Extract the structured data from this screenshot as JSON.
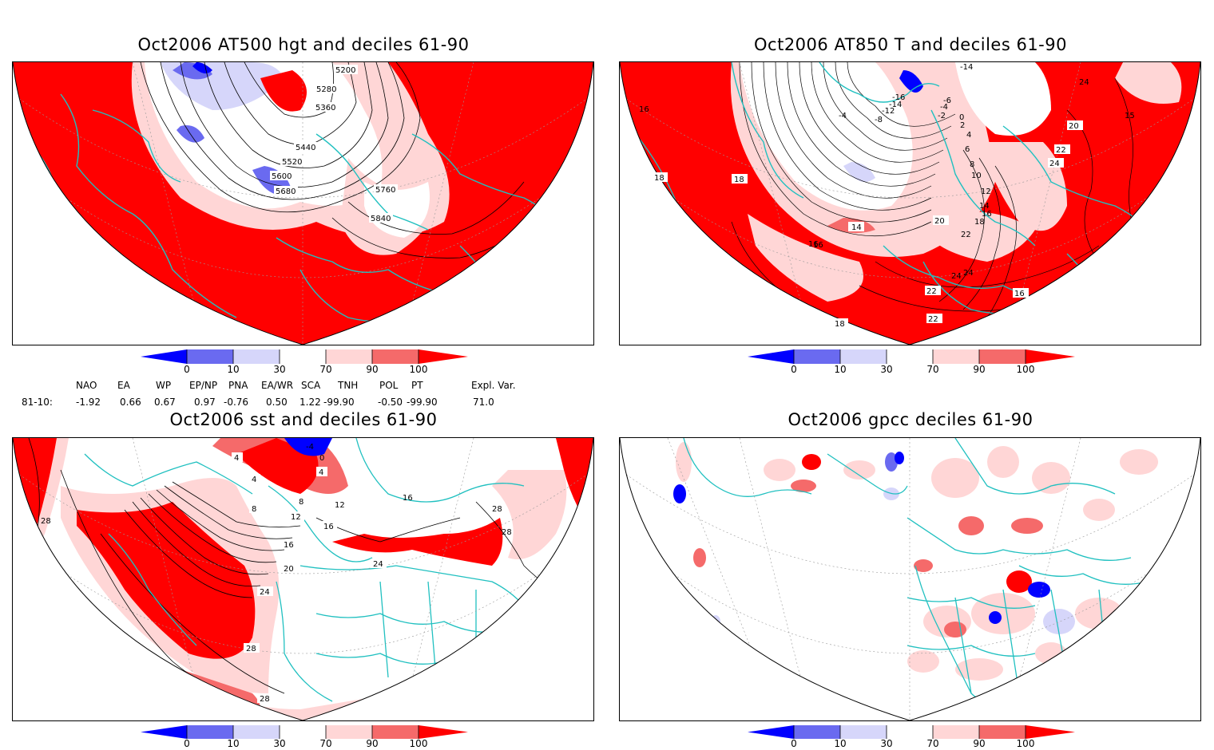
{
  "panels": [
    {
      "id": "p1",
      "title": "Oct2006 AT500 hgt and deciles 61-90",
      "contour_labels": [
        "5200",
        "5280",
        "5360",
        "5440",
        "5520",
        "5600",
        "5680",
        "5760",
        "5840"
      ]
    },
    {
      "id": "p2",
      "title": "Oct2006 AT850 T and deciles 61-90",
      "contour_labels": [
        "-14",
        "-16",
        "-14",
        "-12",
        "-8",
        "-6",
        "-4",
        "-2",
        "0",
        "2",
        "4",
        "6",
        "8",
        "10",
        "12",
        "14",
        "16",
        "18",
        "20",
        "22",
        "24",
        "-4",
        "14",
        "16",
        "18",
        "18",
        "16",
        "20",
        "22",
        "24",
        "22",
        "18",
        "16",
        "20",
        "24",
        "22",
        "24",
        "15",
        "16"
      ]
    },
    {
      "id": "p3",
      "title": "Oct2006 sst and deciles 61-90",
      "contour_labels": [
        "4",
        "8",
        "12",
        "16",
        "20",
        "24",
        "28",
        "28",
        "-4",
        "0",
        "4",
        "8",
        "12",
        "16",
        "24",
        "28",
        "28",
        "16",
        "28",
        "4"
      ]
    },
    {
      "id": "p4",
      "title": "Oct2006 gpcc deciles 61-90",
      "contour_labels": []
    }
  ],
  "colorbar": {
    "labels": [
      "0",
      "10",
      "30",
      "70",
      "90",
      "100"
    ],
    "colors": [
      "#0000ff",
      "#6a6af0",
      "#d6d6fa",
      "#ffffff",
      "#ffd6d6",
      "#f56a6a",
      "#ff0000"
    ]
  },
  "teleconnections": {
    "headers": [
      "NAO",
      "EA",
      "WP",
      "EP/NP",
      "PNA",
      "EA/WR",
      "SCA",
      "TNH",
      "POL",
      "PT",
      "Expl. Var."
    ],
    "period": "81-10:",
    "values": [
      "-1.92",
      "0.66",
      "0.67",
      "0.97",
      "-0.76",
      "0.50",
      "1.22",
      "-99.90",
      "-0.50",
      "-99.90",
      "71.0"
    ]
  },
  "colors": {
    "coast": "#20c0c0",
    "red": "#ff0000",
    "mid_red": "#f56a6a",
    "light_red": "#ffd6d6",
    "light_blue": "#d6d6fa",
    "mid_blue": "#6a6af0",
    "blue": "#0000ff"
  }
}
